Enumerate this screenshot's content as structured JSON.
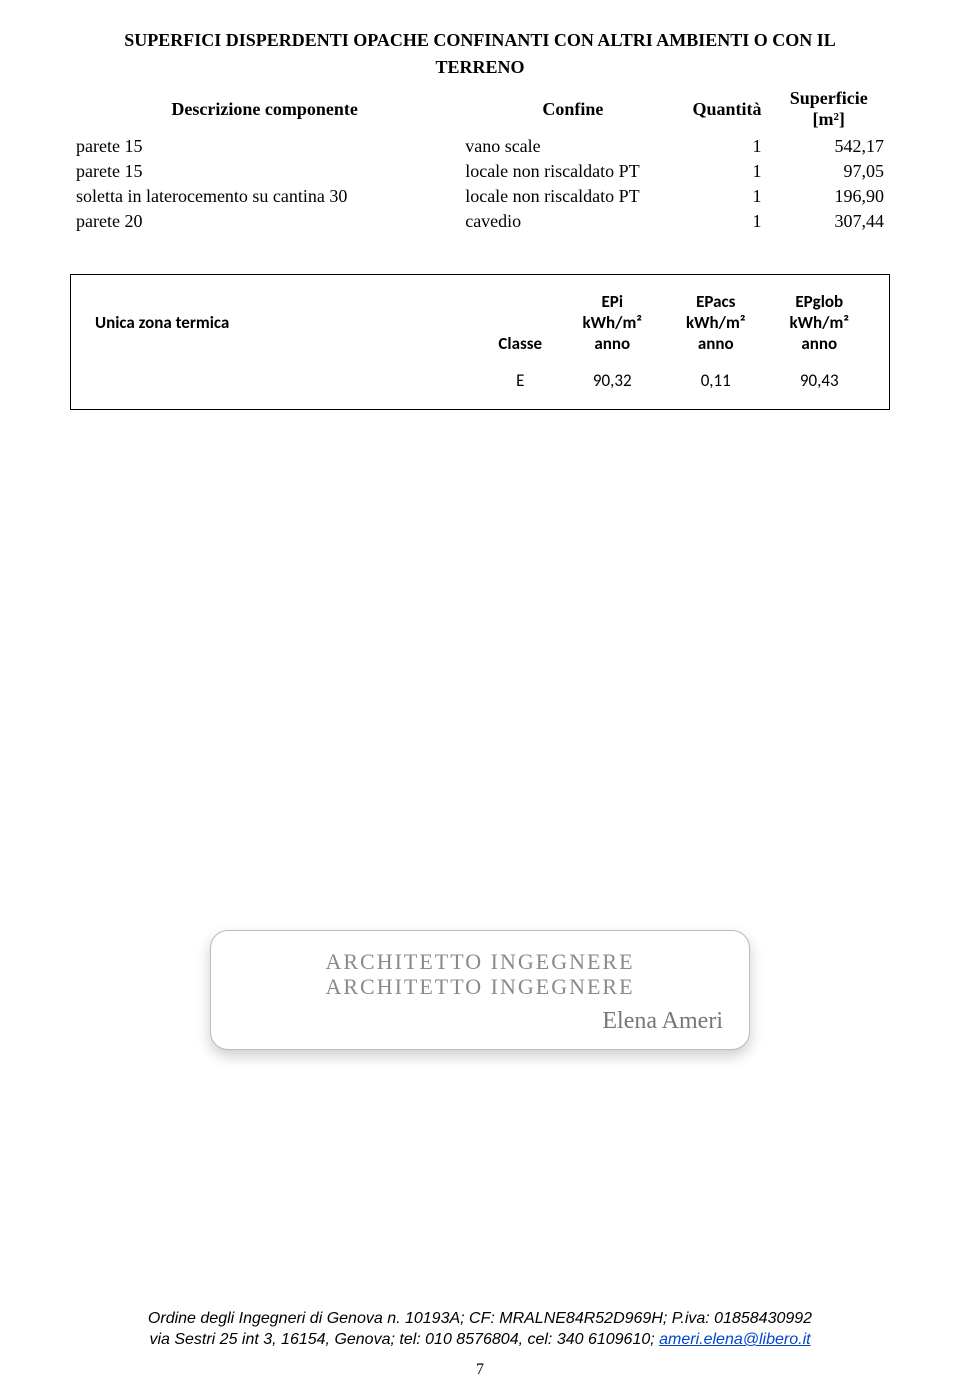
{
  "section": {
    "title_line1": "SUPERFICI DISPERDENTI OPACHE CONFINANTI CON ALTRI AMBIENTI O CON IL",
    "title_line2": "TERRENO"
  },
  "table": {
    "headers": {
      "desc": "Descrizione componente",
      "conf": "Confine",
      "qty": "Quantità",
      "surf_l1": "Superficie",
      "surf_l2": "[m²]"
    },
    "rows": [
      {
        "desc": "parete 15",
        "conf": "vano scale",
        "qty": "1",
        "surf": "542,17"
      },
      {
        "desc": "parete 15",
        "conf": "locale non riscaldato PT",
        "qty": "1",
        "surf": "97,05"
      },
      {
        "desc": "soletta in laterocemento su cantina 30",
        "conf": "locale non riscaldato PT",
        "qty": "1",
        "surf": "196,90"
      },
      {
        "desc": "parete 20",
        "conf": "cavedio",
        "qty": "1",
        "surf": "307,44"
      }
    ]
  },
  "class_box": {
    "zone_label": "Unica zona termica",
    "col_class": "Classe",
    "epi_l1": "EPi",
    "epi_l2": "kWh/m²",
    "epi_l3": "anno",
    "epacs_l1": "EPacs",
    "epacs_l2": "kWh/m²",
    "epacs_l3": "anno",
    "epglob_l1": "EPglob",
    "epglob_l2": "kWh/m²",
    "epglob_l3": "anno",
    "row": {
      "cls": "E",
      "epi": "90,32",
      "epacs": "0,11",
      "epglob": "90,43"
    }
  },
  "signature": {
    "line1": "ARCHITETTO INGEGNERE",
    "line2": "ARCHITETTO INGEGNERE",
    "name": "Elena Ameri"
  },
  "footer": {
    "line1_a": "Ordine degli Ingegneri di Genova n. 10193A; CF: MRALNE84R52D969H; P.iva: 01858430992",
    "line2_a": "via Sestri 25 int 3, 16154, Genova; tel: 010 8576804, cel: 340 6109610; ",
    "email": "ameri.elena@libero.it"
  },
  "page_number": "7"
}
